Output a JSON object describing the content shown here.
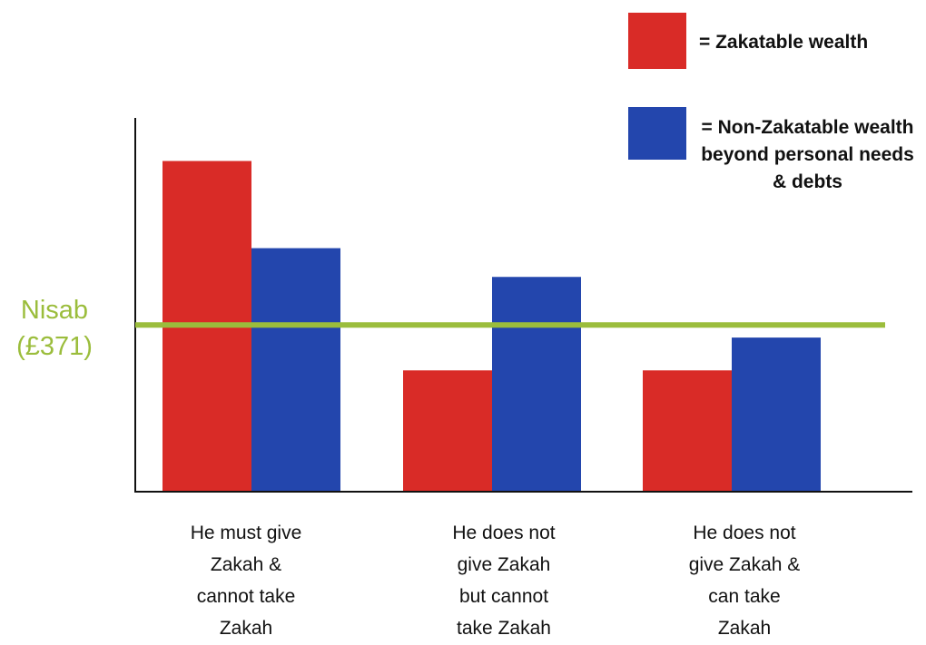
{
  "chart_data": {
    "type": "bar",
    "categories": [
      "He must give\nZakah &\ncannot take\nZakah",
      "He does not\ngive Zakah\nbut cannot\ntake Zakah",
      "He does not\ngive Zakah &\ncan take\nZakah"
    ],
    "series": [
      {
        "name": "= Zakatable wealth",
        "color": "#d92b27",
        "values": [
          736,
          270,
          270
        ]
      },
      {
        "name": "= Non-Zakatable wealth beyond personal needs & debts",
        "color": "#2346ad",
        "values": [
          542,
          478,
          343
        ]
      }
    ],
    "reference_line": {
      "label": "Nisab\n(£371)",
      "value": 371,
      "color": "#9bbd3c"
    },
    "ylim": [
      0,
      850
    ],
    "grid": false,
    "legend_position": "top-right",
    "xlabel": "",
    "ylabel": ""
  }
}
